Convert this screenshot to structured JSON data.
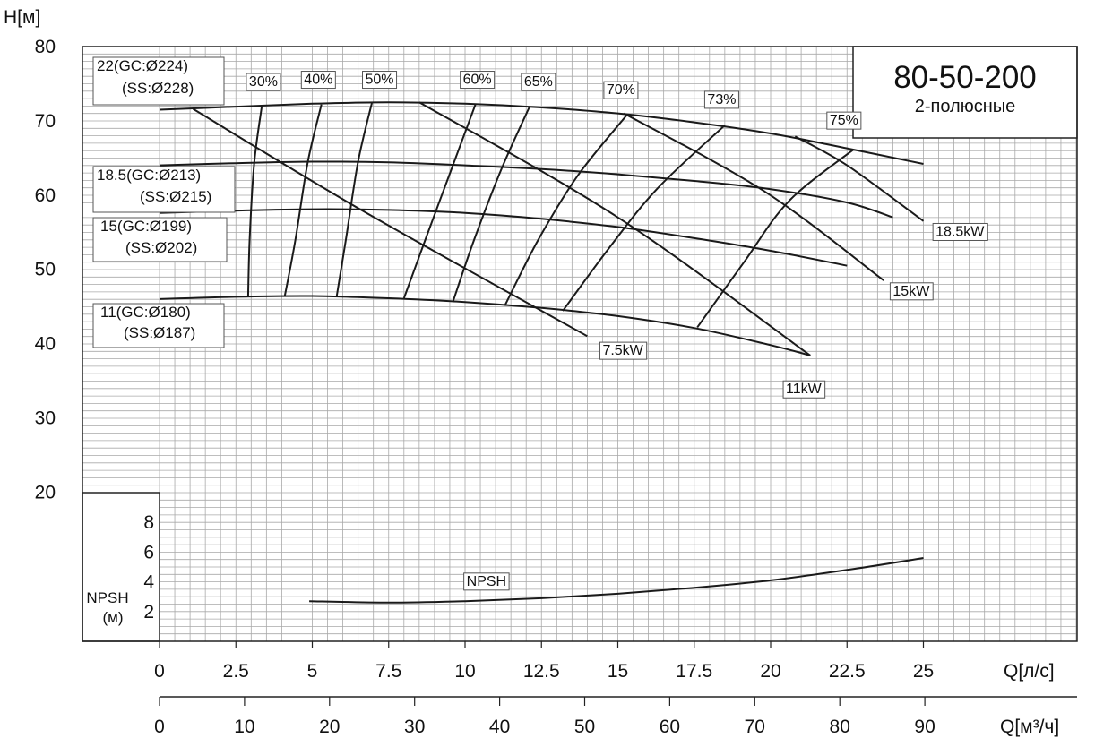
{
  "chart_data": {
    "type": "line",
    "title": "80-50-200",
    "subtitle": "2-полюсные",
    "ylabel": "H[м]",
    "xlabel": "Q[л/с]",
    "xlabel_secondary": "Q[м³/ч]",
    "npsh_ylabel_line1": "NPSH",
    "npsh_ylabel_line2": "(м)",
    "xlim": [
      0,
      30
    ],
    "ylim": [
      20,
      80
    ],
    "npsh_ylim": [
      0,
      10
    ],
    "x_ticks": [
      0,
      2.5,
      5,
      7.5,
      10,
      12.5,
      15,
      17.5,
      20,
      22.5,
      25
    ],
    "x_tick_labels": [
      "0",
      "2.5",
      "5",
      "7.5",
      "10",
      "12.5",
      "15",
      "17.5",
      "20",
      "22.5",
      "25"
    ],
    "x2_ticks": [
      0,
      10,
      20,
      30,
      40,
      50,
      60,
      70,
      80,
      90
    ],
    "x2_tick_labels": [
      "0",
      "10",
      "20",
      "30",
      "40",
      "50",
      "60",
      "70",
      "80",
      "90"
    ],
    "y_ticks": [
      20,
      30,
      40,
      50,
      60,
      70,
      80
    ],
    "y_tick_labels": [
      "20",
      "30",
      "40",
      "50",
      "60",
      "70",
      "80"
    ],
    "npsh_ticks": [
      2,
      4,
      6,
      8
    ],
    "npsh_tick_labels": [
      "2",
      "4",
      "6",
      "8"
    ],
    "impeller_curves": [
      {
        "name": "22(GC:Ø224)",
        "name2": "(SS:Ø228)",
        "x": [
          0,
          2.5,
          5,
          7.5,
          10,
          12.5,
          15,
          17.5,
          20,
          22.5,
          25
        ],
        "y": [
          71.5,
          71.9,
          72.3,
          72.5,
          72.3,
          71.8,
          71.0,
          69.8,
          68.3,
          66.3,
          64.2
        ]
      },
      {
        "name": "18.5(GC:Ø213)",
        "name2": "(SS:Ø215)",
        "x": [
          0,
          2.5,
          5,
          7.5,
          10,
          12.5,
          15,
          17.5,
          20,
          22.5,
          24
        ],
        "y": [
          64.0,
          64.3,
          64.5,
          64.4,
          64.0,
          63.5,
          62.8,
          61.9,
          60.8,
          59.0,
          57.0
        ]
      },
      {
        "name": "15(GC:Ø199)",
        "name2": "(SS:Ø202)",
        "x": [
          0,
          2.5,
          5,
          7.5,
          10,
          12.5,
          15,
          17.5,
          20,
          22.5
        ],
        "y": [
          57.6,
          57.9,
          58.1,
          58.0,
          57.6,
          56.8,
          55.7,
          54.2,
          52.5,
          50.5
        ]
      },
      {
        "name": "11(GC:Ø180)",
        "name2": "(SS:Ø187)",
        "x": [
          0,
          2.5,
          5,
          7.5,
          10,
          12.5,
          15,
          17.5,
          20,
          21.3
        ],
        "y": [
          46.0,
          46.3,
          46.4,
          46.1,
          45.6,
          44.8,
          43.7,
          42.1,
          39.8,
          38.4
        ]
      }
    ],
    "efficiency_curves": [
      {
        "label": "30%",
        "x": [
          2.9,
          2.95,
          3.1,
          3.35
        ],
        "y": [
          46.3,
          54.0,
          64.3,
          72.0
        ],
        "label_x": 3.4,
        "label_y": 75.2
      },
      {
        "label": "40%",
        "x": [
          4.1,
          4.45,
          4.85,
          5.3
        ],
        "y": [
          46.4,
          54.0,
          64.4,
          72.2
        ],
        "label_x": 5.2,
        "label_y": 75.5
      },
      {
        "label": "50%",
        "x": [
          5.8,
          6.1,
          6.5,
          6.95
        ],
        "y": [
          46.4,
          54.0,
          64.5,
          72.4
        ],
        "label_x": 7.2,
        "label_y": 75.5
      },
      {
        "label": "60%",
        "x": [
          8.0,
          8.7,
          9.6,
          10.35
        ],
        "y": [
          46.1,
          54.0,
          64.0,
          72.3
        ],
        "label_x": 10.4,
        "label_y": 75.5
      },
      {
        "label": "65%",
        "x": [
          9.6,
          10.3,
          11.2,
          12.1
        ],
        "y": [
          45.6,
          54.0,
          63.6,
          71.8
        ],
        "label_x": 12.4,
        "label_y": 75.2
      },
      {
        "label": "70%",
        "x": [
          11.3,
          12.4,
          13.7,
          15.3
        ],
        "y": [
          45.1,
          54.0,
          62.7,
          70.8
        ],
        "label_x": 15.1,
        "label_y": 74.1
      },
      {
        "label": "73%",
        "x": [
          13.2,
          14.7,
          16.3,
          18.5
        ],
        "y": [
          44.4,
          52.8,
          60.9,
          69.4
        ],
        "label_x": 18.4,
        "label_y": 72.8
      },
      {
        "label": "75%",
        "x": [
          17.6,
          19.1,
          20.6,
          22.7
        ],
        "y": [
          42.2,
          50.8,
          59.2,
          66.1
        ],
        "label_x": 22.4,
        "label_y": 70.0
      }
    ],
    "power_lines": [
      {
        "label": "7.5kW",
        "x": [
          1.1,
          6.6,
          14.0
        ],
        "y": [
          71.6,
          58.0,
          41.0
        ],
        "label_x": 14.5,
        "label_y": 39.0
      },
      {
        "label": "11kW",
        "x": [
          8.5,
          15.0,
          21.3
        ],
        "y": [
          72.5,
          57.0,
          38.4
        ],
        "label_x": 20.5,
        "label_y": 33.8
      },
      {
        "label": "15kW",
        "x": [
          15.2,
          19.8,
          23.7
        ],
        "y": [
          71.0,
          60.5,
          48.5
        ],
        "label_x": 24.0,
        "label_y": 47.0
      },
      {
        "label": "18.5kW",
        "x": [
          20.8,
          22.5,
          25.0
        ],
        "y": [
          67.9,
          64.0,
          56.5
        ],
        "label_x": 25.4,
        "label_y": 55.0
      }
    ],
    "npsh": {
      "label": "NPSH",
      "x": [
        4.9,
        7.5,
        10,
        12.5,
        15,
        17.5,
        20,
        22.5,
        25
      ],
      "y": [
        2.7,
        2.6,
        2.7,
        2.9,
        3.2,
        3.6,
        4.1,
        4.8,
        5.6
      ],
      "label_x": 10.7,
      "label_y": 4.0
    }
  }
}
